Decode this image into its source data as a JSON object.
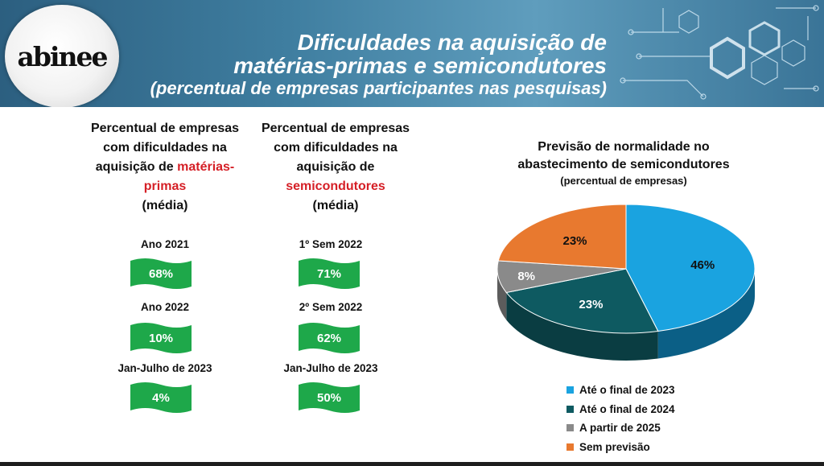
{
  "header": {
    "logo": "abinee",
    "title_line1": "Dificuldades na aquisição de",
    "title_line2": "matérias-primas e semicondutores",
    "subtitle": "(percentual de empresas participantes nas pesquisas)"
  },
  "col1": {
    "title_a": "Percentual de empresas",
    "title_b": "com dificuldades na",
    "title_c": "aquisição de ",
    "title_c_red": "matérias-",
    "title_d_red": "primas",
    "title_e": "(média)"
  },
  "col2": {
    "title_a": "Percentual de empresas",
    "title_b": "com dificuldades na",
    "title_c": "aquisição de",
    "title_d_red": "semicondutores",
    "title_e": "(média)"
  },
  "colors": {
    "green": "#1ea84a",
    "red": "#d51f26",
    "blue": "#1aa3e0",
    "teal": "#0e5a61",
    "gray": "#8a8a8a",
    "orange": "#e8792f"
  },
  "chart_data": [
    {
      "type": "table",
      "title": "Percentual de empresas com dificuldades na aquisição de matérias-primas (média)",
      "categories": [
        "Ano 2021",
        "Ano 2022",
        "Jan-Julho de 2023"
      ],
      "values": [
        68,
        10,
        4
      ],
      "labels": [
        "68%",
        "10%",
        "4%"
      ]
    },
    {
      "type": "table",
      "title": "Percentual de empresas com dificuldades na aquisição de semicondutores (média)",
      "categories": [
        "1º Sem 2022",
        "2º Sem 2022",
        "Jan-Julho de 2023"
      ],
      "values": [
        71,
        62,
        50
      ],
      "labels": [
        "71%",
        "62%",
        "50%"
      ]
    },
    {
      "type": "pie",
      "title": "Previsão de normalidade no abastecimento de semicondutores",
      "title_line1": "Previsão de normalidade no",
      "title_line2": "abastecimento de semicondutores",
      "subtitle": "(percentual de empresas)",
      "categories": [
        "Até o final de 2023",
        "Até o final de 2024",
        "A partir de 2025",
        "Sem previsão"
      ],
      "values": [
        46,
        23,
        8,
        23
      ],
      "labels": [
        "46%",
        "23%",
        "8%",
        "23%"
      ],
      "legend_position": "bottom"
    }
  ]
}
